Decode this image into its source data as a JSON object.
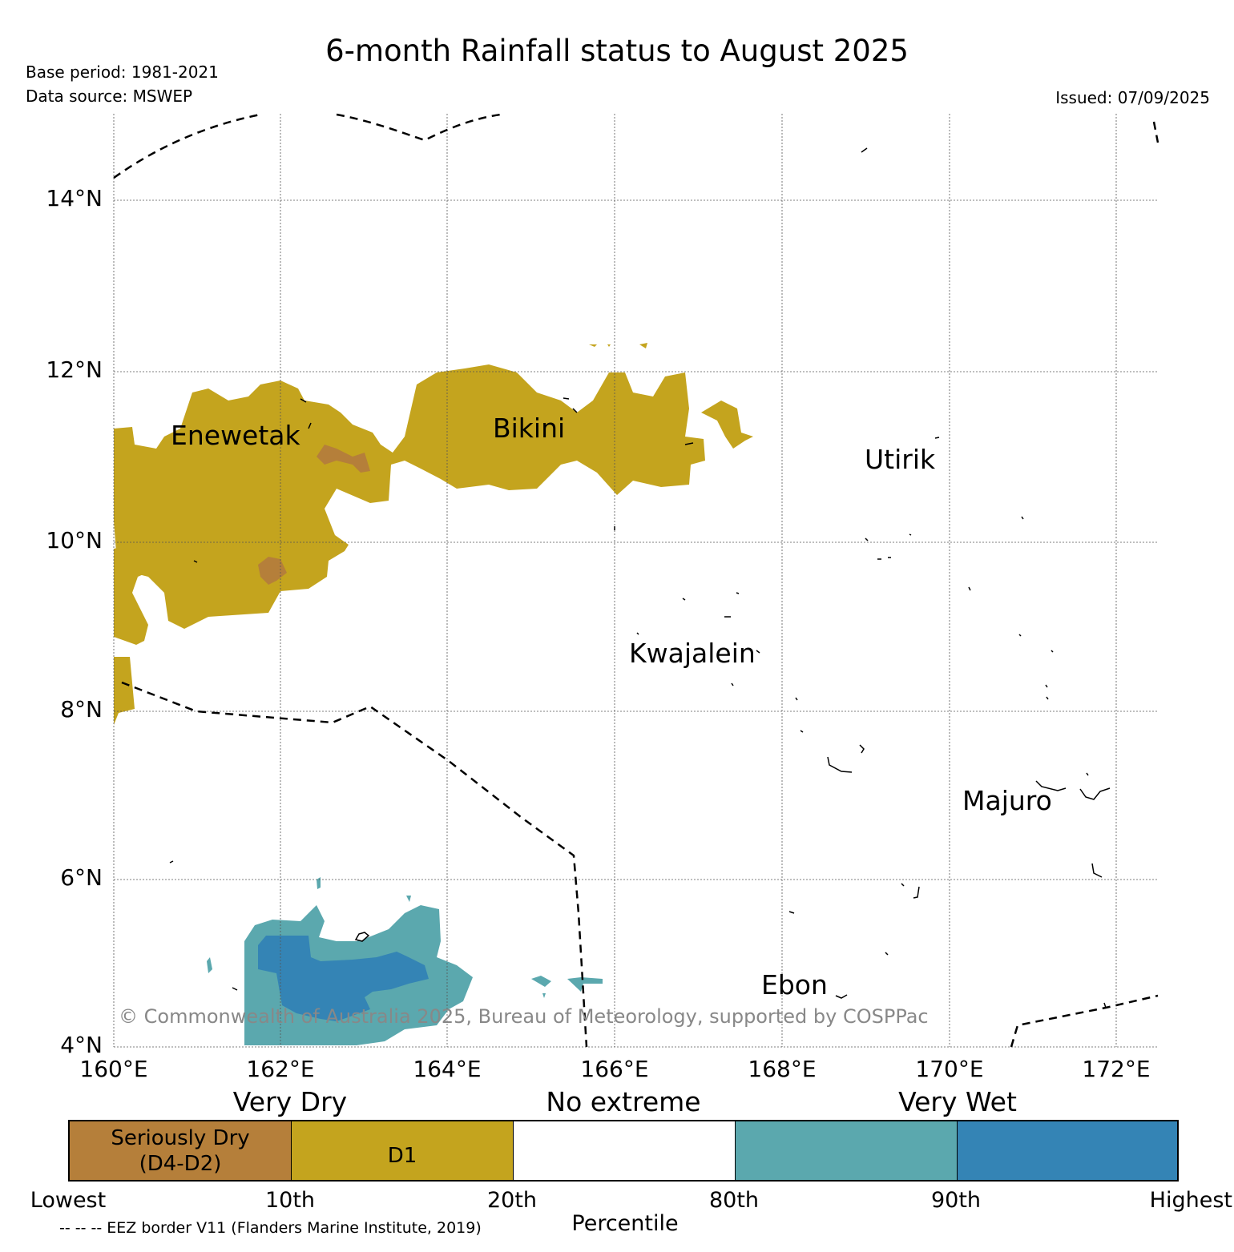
{
  "title": "6-month Rainfall status to August 2025",
  "base_period": "Base period: 1981-2021",
  "data_source": "Data source: MSWEP",
  "issued": "Issued: 07/09/2025",
  "map": {
    "lat_labels": [
      "14°N",
      "12°N",
      "10°N",
      "8°N",
      "6°N",
      "4°N"
    ],
    "lon_labels": [
      "160°E",
      "162°E",
      "164°E",
      "166°E",
      "168°E",
      "170°E",
      "172°E"
    ],
    "places": [
      "Enewetak",
      "Bikini",
      "Utirik",
      "Kwajalein",
      "Majuro",
      "Ebon"
    ],
    "copyright": "© Commonwealth of Australia 2025, Bureau of Meteorology, supported by COSPPac",
    "colors": {
      "seriously_dry": "#b57f3a",
      "d1": "#c4a41e",
      "no_extreme": "#ffffff",
      "very_wet_light": "#5ba8ae",
      "very_wet_dark": "#3484b5",
      "grid": "#555555"
    }
  },
  "legend": {
    "headings": [
      "Very Dry",
      "No extreme",
      "Very Wet"
    ],
    "segments": [
      {
        "label": "Seriously Dry",
        "label2": "(D4-D2)",
        "color": "#b57f3a"
      },
      {
        "label": "D1",
        "color": "#c4a41e"
      },
      {
        "label": "",
        "color": "#ffffff"
      },
      {
        "label": "",
        "color": "#5ba8ae"
      },
      {
        "label": "",
        "color": "#3484b5"
      }
    ],
    "ticks": [
      "Lowest",
      "10th",
      "20th",
      "80th",
      "90th",
      "Highest"
    ],
    "axis_label": "Percentile",
    "eez_note": "-- -- -- EEZ border V11 (Flanders Marine Institute, 2019)"
  }
}
